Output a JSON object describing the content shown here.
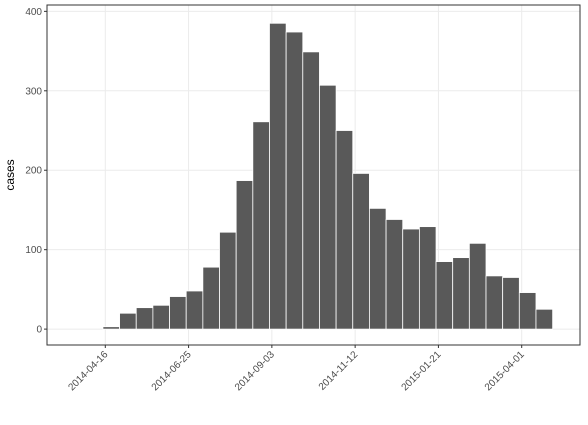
{
  "chart_data": {
    "type": "histogram",
    "y_label": "cases",
    "bins": [
      "2014-04-14",
      "2014-04-28",
      "2014-05-12",
      "2014-05-26",
      "2014-06-09",
      "2014-06-23",
      "2014-07-07",
      "2014-07-21",
      "2014-08-04",
      "2014-08-18",
      "2014-09-01",
      "2014-09-15",
      "2014-09-29",
      "2014-10-13",
      "2014-10-27",
      "2014-11-10",
      "2014-11-24",
      "2014-12-08",
      "2014-12-22",
      "2015-01-05",
      "2015-01-19",
      "2015-02-02",
      "2015-02-16",
      "2015-03-02",
      "2015-03-16",
      "2015-03-30",
      "2015-04-13",
      "2015-04-27"
    ],
    "values": [
      3,
      20,
      27,
      30,
      41,
      48,
      78,
      122,
      187,
      261,
      385,
      374,
      349,
      307,
      250,
      196,
      152,
      138,
      126,
      129,
      85,
      90,
      108,
      67,
      65,
      46,
      25
    ],
    "color": "#595959",
    "xlim": [
      "2014-02-26",
      "2015-05-20"
    ],
    "xticks": [
      "2014-04-16",
      "2014-06-25",
      "2014-09-03",
      "2014-11-12",
      "2015-01-21",
      "2015-04-01"
    ],
    "ylim": [
      -20,
      408
    ],
    "yticks": [
      0,
      100,
      200,
      300,
      400
    ],
    "grid": true
  }
}
